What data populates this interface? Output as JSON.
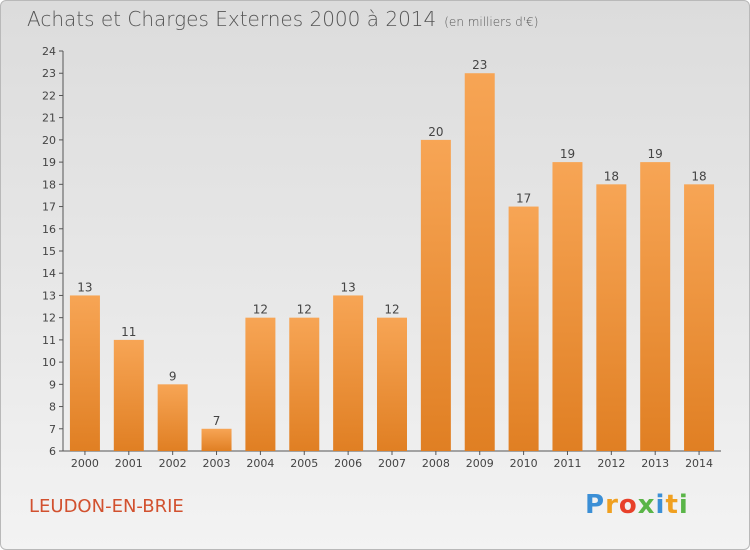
{
  "title": "Achats et Charges Externes 2000 à 2014",
  "subtitle": "(en milliers d'€)",
  "place": "LEUDON-EN-BRIE",
  "brand": [
    "P",
    "r",
    "o",
    "x",
    "i",
    "t",
    "i"
  ],
  "colors": {
    "bar_light": "#f7a555",
    "bar_dark": "#e07f23",
    "axis": "#555555",
    "town": "#d2512f"
  },
  "chart_data": {
    "type": "bar",
    "title": "Achats et Charges Externes 2000 à 2014",
    "categories": [
      "2000",
      "2001",
      "2002",
      "2003",
      "2004",
      "2005",
      "2006",
      "2007",
      "2008",
      "2009",
      "2010",
      "2011",
      "2012",
      "2013",
      "2014"
    ],
    "values": [
      13,
      11,
      9,
      7,
      12,
      12,
      13,
      12,
      20,
      23,
      17,
      19,
      18,
      19,
      18
    ],
    "ylim": [
      6,
      24
    ],
    "yticks": [
      6,
      7,
      8,
      9,
      10,
      11,
      12,
      13,
      14,
      15,
      16,
      17,
      18,
      19,
      20,
      21,
      22,
      23,
      24
    ],
    "grid": false,
    "xlabel": "",
    "ylabel": ""
  }
}
